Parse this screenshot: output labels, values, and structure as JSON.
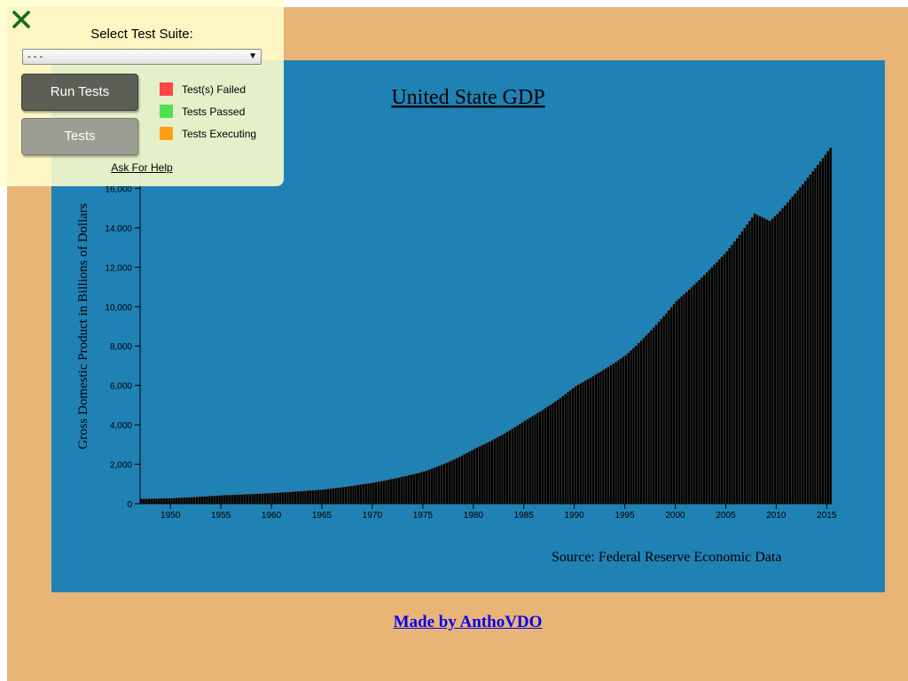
{
  "chart_data": {
    "type": "bar",
    "title": "United State GDP",
    "ylabel": "Gross Domestic Product in Billions of Dollars",
    "source": "Source: Federal Reserve Economic Data",
    "ylim": [
      0,
      18000
    ],
    "y_ticks": [
      "0",
      "2,000",
      "4,000",
      "6,000",
      "8,000",
      "10,000",
      "12,000",
      "14,000",
      "16,000"
    ],
    "x_ticks": [
      "1950",
      "1955",
      "1960",
      "1965",
      "1970",
      "1975",
      "1980",
      "1985",
      "1990",
      "1995",
      "2000",
      "2005",
      "2010",
      "2015"
    ],
    "xlim": [
      1947.0,
      2015.5
    ],
    "bar_frequency": "quarterly",
    "x": [
      1947,
      1950,
      1955,
      1960,
      1965,
      1970,
      1975,
      1980,
      1985,
      1990,
      1995,
      2000,
      2005,
      2007.75,
      2009.25,
      2010,
      2015.25
    ],
    "values": [
      243,
      280,
      426,
      543,
      719,
      1073,
      1638,
      2790,
      4217,
      5960,
      7543,
      10285,
      12814,
      14720,
      14355,
      14700,
      18065
    ],
    "grid": false,
    "colors": {
      "bars": "#000000",
      "bar_stroke": "#666666",
      "background": "#2081b4"
    }
  },
  "footer": {
    "link_text": "Made by AnthoVDO"
  },
  "test_panel": {
    "close_icon": "close-x-icon",
    "select_label": "Select Test Suite:",
    "select_value": "- - -",
    "run_button": "Run Tests",
    "tests_button": "Tests",
    "legend": [
      {
        "label": "Test(s) Failed",
        "color": "#ff4646"
      },
      {
        "label": "Tests Passed",
        "color": "#50e150"
      },
      {
        "label": "Tests Executing",
        "color": "#ffa014"
      }
    ],
    "help_link": "Ask For Help"
  }
}
